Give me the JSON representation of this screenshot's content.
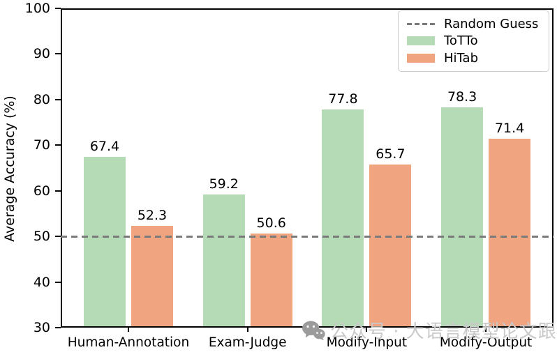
{
  "chart_data": {
    "type": "bar",
    "title": "",
    "categories": [
      "Human-Annotation",
      "Exam-Judge",
      "Modify-Input",
      "Modify-Output"
    ],
    "series": [
      {
        "name": "ToTTo",
        "color": "#b5dbb6",
        "values": [
          67.4,
          59.2,
          77.8,
          78.3
        ]
      },
      {
        "name": "HiTab",
        "color": "#f0a480",
        "values": [
          52.3,
          50.6,
          65.7,
          71.4
        ]
      }
    ],
    "xlabel": "",
    "ylabel": "Average Accuracy (%)",
    "ylim": [
      30,
      100
    ],
    "yticks": [
      30,
      40,
      50,
      60,
      70,
      80,
      90,
      100
    ],
    "reference_line": {
      "label": "Random Guess",
      "value": 50,
      "color": "#7a7a7a",
      "style": "dashed"
    },
    "legend_position": "upper right",
    "grid": false,
    "value_labels": true
  },
  "watermark": {
    "text": "公众号 · 大语言模型论文跟踪",
    "icon": "wechat-icon",
    "icon_color": "#9b9b9b",
    "text_color": "#c9c9c9"
  }
}
